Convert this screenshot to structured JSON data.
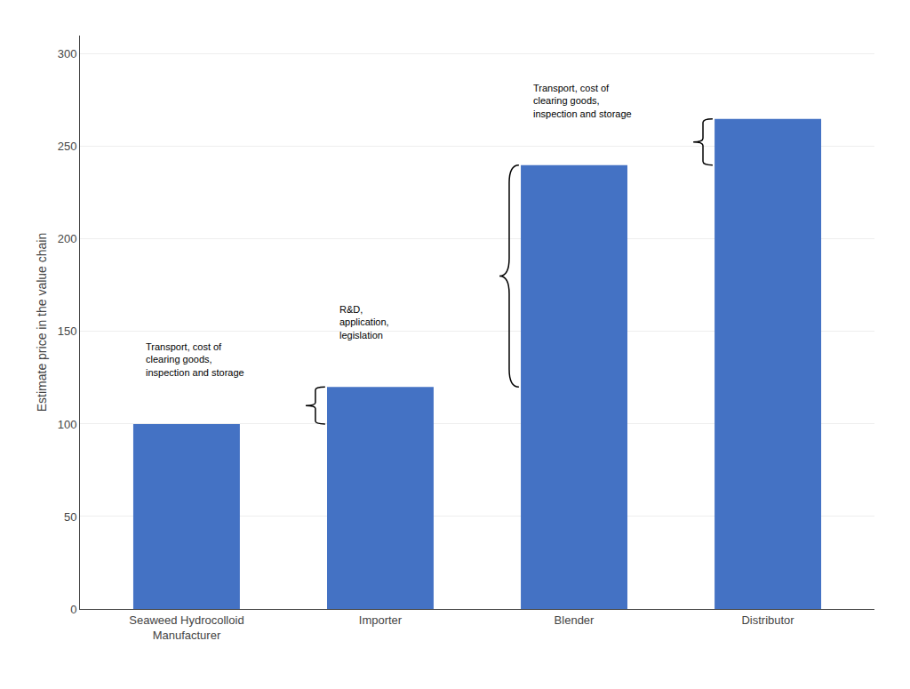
{
  "chart_data": {
    "type": "bar",
    "categories": [
      "Seaweed Hydrocolloid\nManufacturer",
      "Importer",
      "Blender",
      "Distributor"
    ],
    "values": [
      100,
      120,
      240,
      265
    ],
    "color": "#4472C4",
    "ylabel": "Estimate price in the value chain",
    "ylim": [
      0,
      310
    ],
    "yticks": [
      0,
      50,
      100,
      150,
      200,
      250,
      300
    ],
    "grid": true,
    "annotations": [
      "Transport, cost of\nclearing goods,\ninspection and storage",
      "R&D,\napplication,\nlegislation",
      "Transport, cost of\nclearing goods,\ninspection and storage"
    ]
  }
}
